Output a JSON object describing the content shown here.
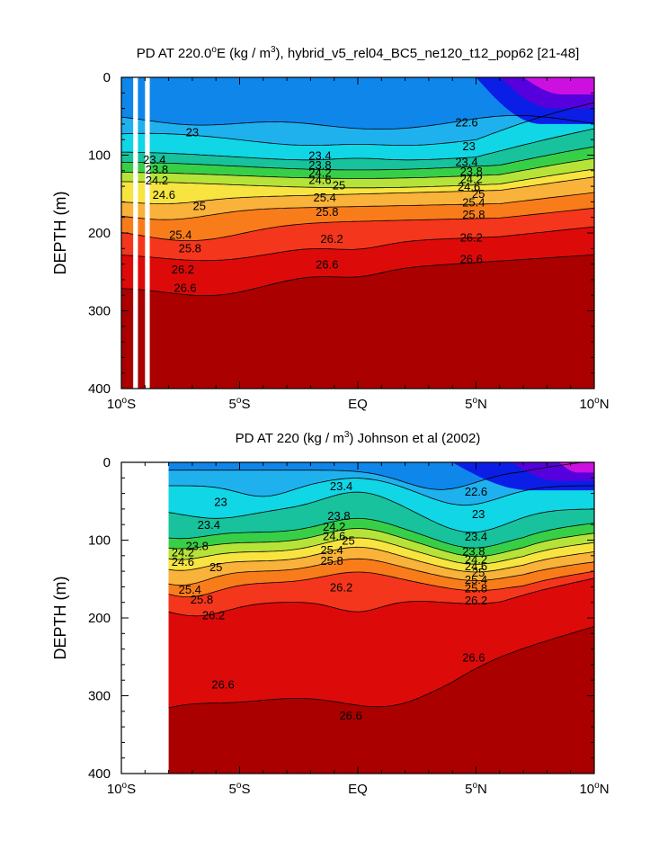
{
  "chart_data": [
    {
      "type": "heatmap",
      "title": "PD AT 220.0°E (kg / m³), hybrid_v5_rel04_BC5_ne120_t12_pop62 [21-48]",
      "title_parts": [
        "PD AT 220.0",
        "o",
        "E (kg / m",
        "3",
        "), hybrid_v5_rel04_BC5_ne120_t12_pop62 [21-48]"
      ],
      "xlabel": "",
      "ylabel": "DEPTH (m)",
      "xlim": [
        -10,
        10
      ],
      "ylim": [
        400,
        0
      ],
      "xticks": [
        -10,
        -5,
        0,
        5,
        10
      ],
      "xtick_labels": [
        "10°S",
        "5°S",
        "EQ",
        "5°N",
        "10°N"
      ],
      "yticks": [
        0,
        100,
        200,
        300,
        400
      ],
      "ytick_labels": [
        "0",
        "100",
        "200",
        "300",
        "400"
      ],
      "contour_levels": [
        22.6,
        23.0,
        23.4,
        23.8,
        24.2,
        24.6,
        25.0,
        25.4,
        25.8,
        26.2,
        26.6
      ],
      "data_start_lat": -10,
      "missing_strips": [
        [
          -9.5,
          -9.3
        ],
        [
          -9.0,
          -8.8
        ]
      ],
      "contour_labels": [
        {
          "text": "23",
          "lat": -7.0,
          "depth": 70
        },
        {
          "text": "23.4",
          "lat": -8.6,
          "depth": 105
        },
        {
          "text": "23.8",
          "lat": -8.5,
          "depth": 118
        },
        {
          "text": "24.2",
          "lat": -8.5,
          "depth": 132
        },
        {
          "text": "24.6",
          "lat": -8.2,
          "depth": 150
        },
        {
          "text": "25",
          "lat": -6.7,
          "depth": 165
        },
        {
          "text": "25.4",
          "lat": -7.5,
          "depth": 202
        },
        {
          "text": "25.8",
          "lat": -7.1,
          "depth": 219
        },
        {
          "text": "26.2",
          "lat": -7.4,
          "depth": 246
        },
        {
          "text": "26.6",
          "lat": -7.3,
          "depth": 270
        },
        {
          "text": "23.4",
          "lat": -1.6,
          "depth": 100
        },
        {
          "text": "23.8",
          "lat": -1.6,
          "depth": 112
        },
        {
          "text": "24.2",
          "lat": -1.6,
          "depth": 122
        },
        {
          "text": "24.6",
          "lat": -1.6,
          "depth": 131
        },
        {
          "text": "25",
          "lat": -0.8,
          "depth": 138
        },
        {
          "text": "25.4",
          "lat": -1.4,
          "depth": 154
        },
        {
          "text": "25.8",
          "lat": -1.3,
          "depth": 172
        },
        {
          "text": "26.2",
          "lat": -1.1,
          "depth": 207
        },
        {
          "text": "26.6",
          "lat": -1.3,
          "depth": 240
        },
        {
          "text": "22.6",
          "lat": 4.6,
          "depth": 57
        },
        {
          "text": "23",
          "lat": 4.7,
          "depth": 88
        },
        {
          "text": "23.4",
          "lat": 4.6,
          "depth": 108
        },
        {
          "text": "23.8",
          "lat": 4.8,
          "depth": 120
        },
        {
          "text": "24.2",
          "lat": 4.8,
          "depth": 130
        },
        {
          "text": "24.6",
          "lat": 4.7,
          "depth": 140
        },
        {
          "text": "25",
          "lat": 5.1,
          "depth": 149
        },
        {
          "text": "25.4",
          "lat": 4.9,
          "depth": 160
        },
        {
          "text": "25.8",
          "lat": 4.9,
          "depth": 176
        },
        {
          "text": "26.2",
          "lat": 4.8,
          "depth": 205
        },
        {
          "text": "26.6",
          "lat": 4.8,
          "depth": 233
        }
      ]
    },
    {
      "type": "heatmap",
      "title": "PD AT 220 (kg / m³) Johnson et al (2002)",
      "title_parts": [
        "PD AT 220 (kg / m",
        "3",
        ") Johnson et al (2002)"
      ],
      "xlabel": "",
      "ylabel": "DEPTH (m)",
      "xlim": [
        -10,
        10
      ],
      "ylim": [
        400,
        0
      ],
      "xticks": [
        -10,
        -5,
        0,
        5,
        10
      ],
      "xtick_labels": [
        "10°S",
        "5°S",
        "EQ",
        "5°N",
        "10°N"
      ],
      "yticks": [
        0,
        100,
        200,
        300,
        400
      ],
      "ytick_labels": [
        "0",
        "100",
        "200",
        "300",
        "400"
      ],
      "contour_levels": [
        22.6,
        23.0,
        23.4,
        23.8,
        24.2,
        24.6,
        25.0,
        25.4,
        25.8,
        26.2,
        26.6
      ],
      "data_start_lat": -8,
      "missing_strips": [],
      "contour_labels": [
        {
          "text": "23",
          "lat": -5.8,
          "depth": 50
        },
        {
          "text": "23.4",
          "lat": -6.3,
          "depth": 80
        },
        {
          "text": "23.8",
          "lat": -6.8,
          "depth": 107
        },
        {
          "text": "24.2",
          "lat": -7.4,
          "depth": 115
        },
        {
          "text": "24.6",
          "lat": -7.4,
          "depth": 127
        },
        {
          "text": "25",
          "lat": -6.0,
          "depth": 134
        },
        {
          "text": "25.4",
          "lat": -7.1,
          "depth": 163
        },
        {
          "text": "25.8",
          "lat": -6.6,
          "depth": 176
        },
        {
          "text": "26.2",
          "lat": -6.1,
          "depth": 196
        },
        {
          "text": "26.6",
          "lat": -5.7,
          "depth": 285
        },
        {
          "text": "23.4",
          "lat": -0.7,
          "depth": 30
        },
        {
          "text": "23.8",
          "lat": -0.8,
          "depth": 68
        },
        {
          "text": "24.2",
          "lat": -1.0,
          "depth": 82
        },
        {
          "text": "24.6",
          "lat": -1.0,
          "depth": 94
        },
        {
          "text": "25",
          "lat": -0.4,
          "depth": 100
        },
        {
          "text": "25.4",
          "lat": -1.1,
          "depth": 112
        },
        {
          "text": "25.8",
          "lat": -1.1,
          "depth": 126
        },
        {
          "text": "26.2",
          "lat": -0.7,
          "depth": 160
        },
        {
          "text": "26.6",
          "lat": -0.3,
          "depth": 325
        },
        {
          "text": "22.6",
          "lat": 5.0,
          "depth": 37
        },
        {
          "text": "23",
          "lat": 5.1,
          "depth": 66
        },
        {
          "text": "23.4",
          "lat": 5.0,
          "depth": 95
        },
        {
          "text": "23.8",
          "lat": 4.9,
          "depth": 114
        },
        {
          "text": "24.2",
          "lat": 5.0,
          "depth": 124
        },
        {
          "text": "24.6",
          "lat": 5.0,
          "depth": 133
        },
        {
          "text": "25",
          "lat": 5.1,
          "depth": 141
        },
        {
          "text": "25.4",
          "lat": 5.0,
          "depth": 150
        },
        {
          "text": "25.8",
          "lat": 5.0,
          "depth": 161
        },
        {
          "text": "26.2",
          "lat": 5.0,
          "depth": 177
        },
        {
          "text": "26.6",
          "lat": 4.9,
          "depth": 250
        }
      ]
    }
  ]
}
